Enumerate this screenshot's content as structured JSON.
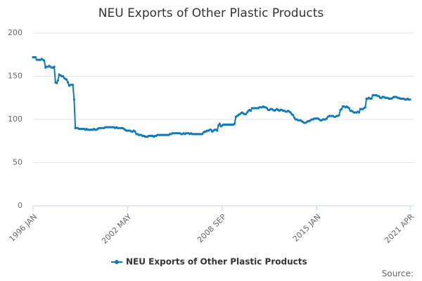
{
  "chart_data": {
    "type": "line",
    "title": "NEU Exports of Other Plastic Products",
    "source": "Source:",
    "categories": [
      "1996 JAN",
      null,
      null,
      null,
      null,
      null,
      null,
      null,
      null,
      null,
      null,
      null,
      null,
      null,
      null,
      null,
      null,
      null,
      null,
      null,
      null,
      null,
      null,
      null,
      null,
      null,
      null,
      null,
      null,
      null,
      null,
      null,
      null,
      null,
      null,
      null,
      null,
      null,
      null,
      null,
      null,
      null,
      null,
      null,
      null,
      null,
      null,
      null,
      null,
      null,
      null,
      null,
      null,
      null,
      null,
      null,
      null,
      null,
      null,
      null,
      null,
      null,
      null,
      null,
      null,
      null,
      null,
      null,
      null,
      null,
      null,
      null,
      null,
      null,
      null,
      null,
      "2002 MAY",
      null,
      null,
      null,
      null,
      null,
      null,
      null,
      null,
      null,
      null,
      null,
      null,
      null,
      null,
      null,
      null,
      null,
      null,
      null,
      null,
      null,
      null,
      null,
      null,
      null,
      null,
      null,
      null,
      null,
      null,
      null,
      null,
      null,
      null,
      null,
      null,
      null,
      null,
      null,
      null,
      null,
      null,
      null,
      null,
      null,
      null,
      null,
      null,
      null,
      null,
      null,
      null,
      null,
      null,
      null,
      null,
      null,
      null,
      null,
      null,
      null,
      null,
      null,
      null,
      null,
      null,
      null,
      null,
      null,
      null,
      null,
      null,
      null,
      null,
      null,
      "2008 SEP",
      null,
      null,
      null,
      null,
      null,
      null,
      null,
      null,
      null,
      null,
      null,
      null,
      null,
      null,
      null,
      null,
      null,
      null,
      null,
      null,
      null,
      null,
      null,
      null,
      null,
      null,
      null,
      null,
      null,
      null,
      null,
      null,
      null,
      null,
      null,
      null,
      null,
      null,
      null,
      null,
      null,
      null,
      null,
      null,
      null,
      null,
      null,
      null,
      null,
      null,
      null,
      null,
      null,
      null,
      null,
      null,
      null,
      null,
      null,
      null,
      null,
      null,
      null,
      null,
      null,
      null,
      null,
      null,
      null,
      null,
      null,
      null,
      null,
      null,
      null,
      "2015 JAN",
      null,
      null,
      null,
      null,
      null,
      null,
      null,
      null,
      null,
      null,
      null,
      null,
      null,
      null,
      null,
      null,
      null,
      null,
      null,
      null,
      null,
      null,
      null,
      null,
      null,
      null,
      null,
      null,
      null,
      null,
      null,
      null,
      null,
      null,
      null,
      null,
      null,
      null,
      null,
      null,
      null,
      null,
      null,
      null,
      null,
      null,
      null,
      null,
      null,
      null,
      null,
      null,
      null,
      null,
      null,
      null,
      null,
      null,
      null,
      null,
      null,
      null,
      null,
      null,
      null,
      null,
      null,
      null,
      null,
      null,
      null,
      null,
      null,
      null,
      "2021 APR"
    ],
    "series": [
      {
        "name": "NEU Exports of Other Plastic Products",
        "color": "#0f7bbd",
        "values": [
          172,
          172,
          172,
          169,
          169,
          169,
          169,
          170,
          169,
          168,
          160,
          161,
          161,
          162,
          161,
          160,
          160,
          161,
          143,
          142,
          145,
          152,
          151,
          150,
          150,
          148,
          147,
          146,
          143,
          139,
          140,
          140,
          140,
          123,
          90,
          90,
          90,
          89,
          89,
          89,
          89,
          89,
          88,
          89,
          88,
          88,
          88,
          88,
          88,
          89,
          88,
          88,
          89,
          90,
          90,
          90,
          90,
          90,
          91,
          91,
          91,
          91,
          91,
          91,
          91,
          91,
          90,
          91,
          90,
          90,
          90,
          90,
          90,
          89,
          88,
          87,
          87,
          87,
          87,
          86,
          86,
          87,
          86,
          83,
          83,
          82,
          82,
          82,
          81,
          81,
          80,
          80,
          80,
          81,
          81,
          81,
          81,
          80,
          81,
          81,
          82,
          82,
          82,
          82,
          82,
          82,
          82,
          82,
          82,
          82,
          83,
          83,
          84,
          84,
          84,
          84,
          84,
          84,
          84,
          83,
          83,
          84,
          83,
          84,
          84,
          84,
          83,
          84,
          83,
          83,
          83,
          83,
          83,
          83,
          83,
          83,
          83,
          85,
          86,
          86,
          87,
          87,
          88,
          88,
          86,
          87,
          88,
          88,
          87,
          93,
          95,
          92,
          93,
          94,
          94,
          94,
          94,
          94,
          94,
          94,
          94,
          94,
          95,
          103,
          104,
          105,
          106,
          107,
          108,
          107,
          106,
          106,
          108,
          110,
          111,
          110,
          113,
          113,
          113,
          113,
          113,
          113,
          114,
          114,
          114,
          115,
          114,
          114,
          113,
          111,
          111,
          112,
          112,
          111,
          110,
          111,
          112,
          111,
          110,
          111,
          111,
          110,
          110,
          109,
          109,
          110,
          109,
          108,
          106,
          105,
          102,
          100,
          100,
          99,
          99,
          99,
          98,
          97,
          96,
          96,
          97,
          98,
          98,
          99,
          100,
          100,
          101,
          101,
          101,
          101,
          100,
          99,
          99,
          100,
          100,
          100,
          101,
          103,
          104,
          104,
          104,
          104,
          103,
          103,
          104,
          104,
          105,
          111,
          112,
          115,
          115,
          114,
          115,
          114,
          113,
          110,
          110,
          109,
          108,
          108,
          108,
          109,
          108,
          112,
          112,
          112,
          113,
          114,
          124,
          124,
          125,
          124,
          124,
          128,
          128,
          128,
          128,
          127,
          127,
          125,
          125,
          126,
          126,
          125,
          125,
          125,
          124,
          124,
          124,
          125,
          126,
          126,
          126,
          125,
          125,
          124,
          124,
          124,
          124,
          123,
          123,
          124,
          123,
          123
        ]
      }
    ],
    "ylim": [
      0,
      200
    ],
    "yticks": [
      0,
      50,
      100,
      150,
      200
    ],
    "grid": true
  }
}
